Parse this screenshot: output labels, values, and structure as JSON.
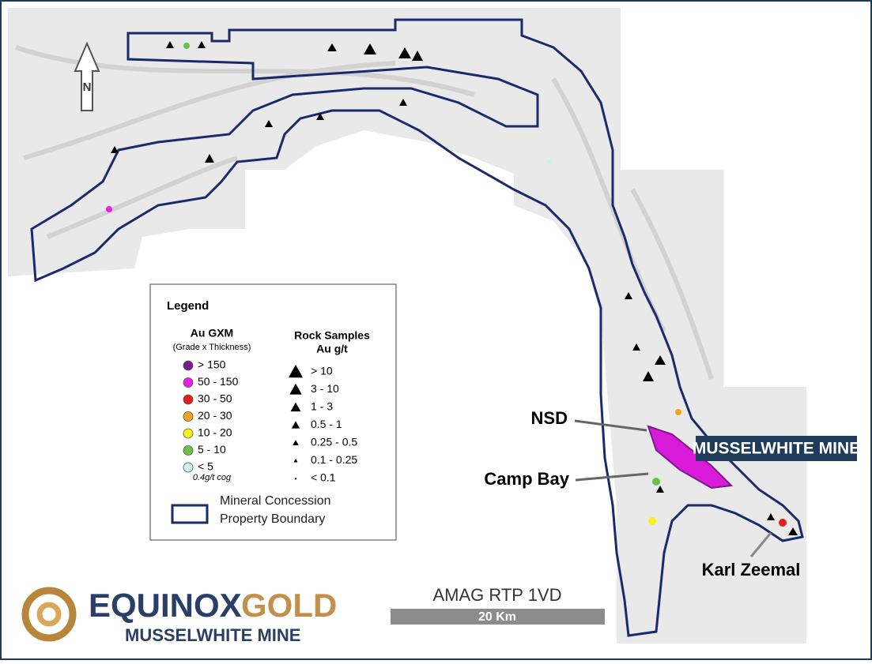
{
  "north_arrow": "N",
  "legend": {
    "title": "Legend",
    "gxm": {
      "title": "Au GXM",
      "subtitle": "(Grade x Thickness)",
      "items": [
        {
          "label": "> 150",
          "color": "#7b1a8c"
        },
        {
          "label": "50 - 150",
          "color": "#e61ee6"
        },
        {
          "label": "30 - 50",
          "color": "#e0201b"
        },
        {
          "label": "20 - 30",
          "color": "#f2a51c"
        },
        {
          "label": "10 - 20",
          "color": "#f5f01e"
        },
        {
          "label": "5 - 10",
          "color": "#6cc04a"
        },
        {
          "label": "< 5",
          "color": "#c8f0f5"
        }
      ],
      "note": "0.4g/t cog"
    },
    "rock": {
      "title": "Rock Samples",
      "subtitle": "Au g/t",
      "items": [
        "> 10",
        "3 - 10",
        "1 - 3",
        "0.5 - 1",
        "0.25 - 0.5",
        "0.1 - 0.25",
        "< 0.1"
      ]
    },
    "boundary": [
      "Mineral Concession",
      "Property Boundary"
    ]
  },
  "labels": {
    "nsd": "NSD",
    "camp_bay": "Camp Bay",
    "mine": "MUSSELWHITE MINE",
    "karl_zeemal": "Karl Zeemal"
  },
  "scale": {
    "title": "AMAG RTP 1VD",
    "bar": "20 Km"
  },
  "logo": {
    "word1": "EQUINOX",
    "word2": "GOLD",
    "subtitle": "MUSSELWHITE MINE"
  }
}
